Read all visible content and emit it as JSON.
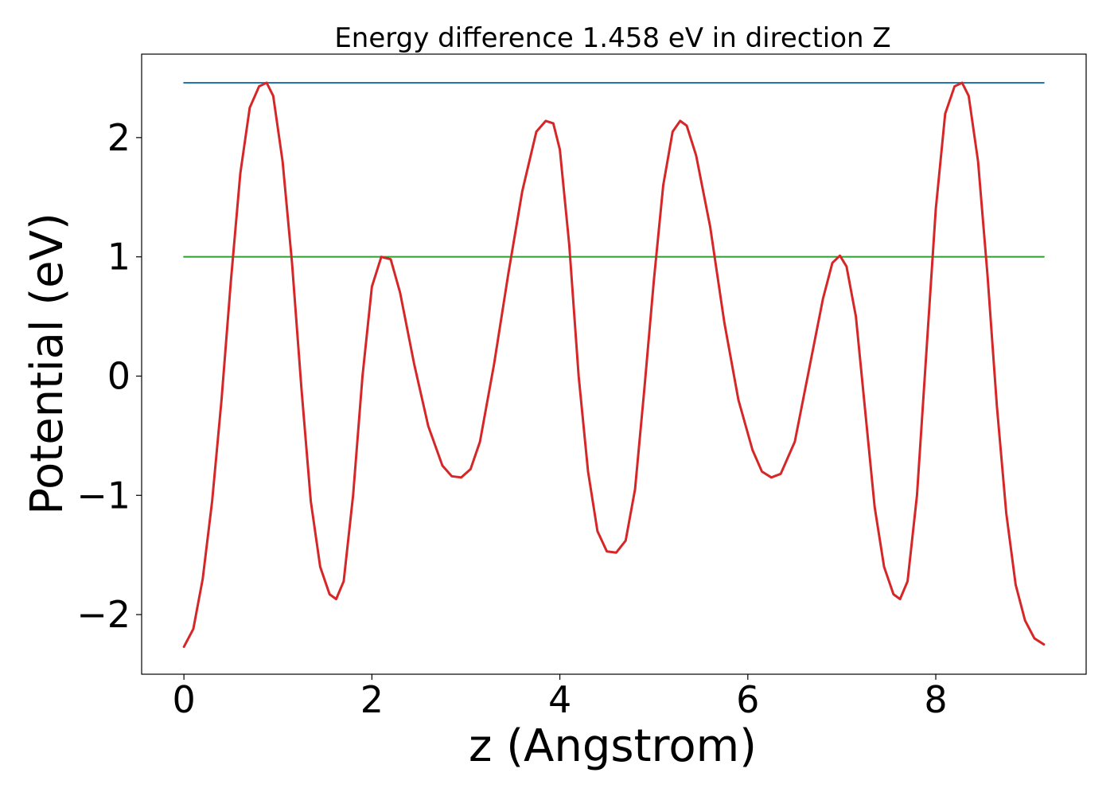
{
  "chart_data": {
    "type": "line",
    "title": "Energy difference 1.458 eV in direction Z",
    "xlabel": "z (Angstrom)",
    "ylabel": "Potential (eV)",
    "xlim": [
      -0.45,
      9.6
    ],
    "ylim": [
      -2.5,
      2.7
    ],
    "x_ticks": [
      0,
      2,
      4,
      6,
      8
    ],
    "x_tick_labels": [
      "0",
      "2",
      "4",
      "6",
      "8"
    ],
    "y_ticks": [
      -2,
      -1,
      0,
      1,
      2
    ],
    "y_tick_labels": [
      "−2",
      "−1",
      "0",
      "1",
      "2"
    ],
    "grid": false,
    "colors": {
      "potential": "#d62728",
      "max_line": "#1f77b4",
      "min_line": "#2ca02c"
    },
    "series": [
      {
        "x": [
          0,
          0.1,
          0.2,
          0.3,
          0.4,
          0.5,
          0.6,
          0.7,
          0.8,
          0.88,
          0.95,
          1.05,
          1.15,
          1.25,
          1.35,
          1.45,
          1.55,
          1.62,
          1.7,
          1.8,
          1.9,
          2.0,
          2.1,
          2.2,
          2.3,
          2.45,
          2.6,
          2.75,
          2.85,
          2.95,
          3.05,
          3.15,
          3.3,
          3.45,
          3.6,
          3.75,
          3.85,
          3.93,
          4.0,
          4.1,
          4.2,
          4.3,
          4.4,
          4.5,
          4.6,
          4.7,
          4.8,
          4.9,
          5.0,
          5.1,
          5.2,
          5.28,
          5.35,
          5.45,
          5.6,
          5.75,
          5.9,
          6.05,
          6.15,
          6.25,
          6.35,
          6.5,
          6.65,
          6.8,
          6.9,
          6.98,
          7.05,
          7.15,
          7.25,
          7.35,
          7.45,
          7.55,
          7.62,
          7.7,
          7.8,
          7.9,
          8.0,
          8.1,
          8.2,
          8.28,
          8.35,
          8.45,
          8.55,
          8.65,
          8.75,
          8.85,
          8.95,
          9.05,
          9.15
        ],
        "values": [
          -2.27,
          -2.12,
          -1.7,
          -1.05,
          -0.2,
          0.8,
          1.7,
          2.25,
          2.43,
          2.46,
          2.35,
          1.8,
          0.95,
          -0.1,
          -1.05,
          -1.6,
          -1.83,
          -1.87,
          -1.72,
          -1.0,
          0.0,
          0.75,
          1.0,
          0.98,
          0.7,
          0.1,
          -0.42,
          -0.75,
          -0.84,
          -0.85,
          -0.78,
          -0.55,
          0.1,
          0.85,
          1.55,
          2.05,
          2.14,
          2.12,
          1.9,
          1.1,
          0.0,
          -0.8,
          -1.3,
          -1.47,
          -1.48,
          -1.38,
          -0.95,
          -0.1,
          0.8,
          1.6,
          2.05,
          2.14,
          2.1,
          1.85,
          1.25,
          0.45,
          -0.2,
          -0.62,
          -0.8,
          -0.85,
          -0.82,
          -0.55,
          0.05,
          0.65,
          0.95,
          1.01,
          0.92,
          0.5,
          -0.3,
          -1.1,
          -1.6,
          -1.83,
          -1.87,
          -1.72,
          -1.0,
          0.2,
          1.4,
          2.2,
          2.43,
          2.46,
          2.35,
          1.8,
          0.85,
          -0.25,
          -1.15,
          -1.75,
          -2.05,
          -2.2,
          -2.25
        ]
      },
      {
        "x": [
          0,
          9.15
        ],
        "values": [
          2.46,
          2.46
        ]
      },
      {
        "x": [
          0,
          9.15
        ],
        "values": [
          1.0,
          1.0
        ]
      }
    ]
  }
}
